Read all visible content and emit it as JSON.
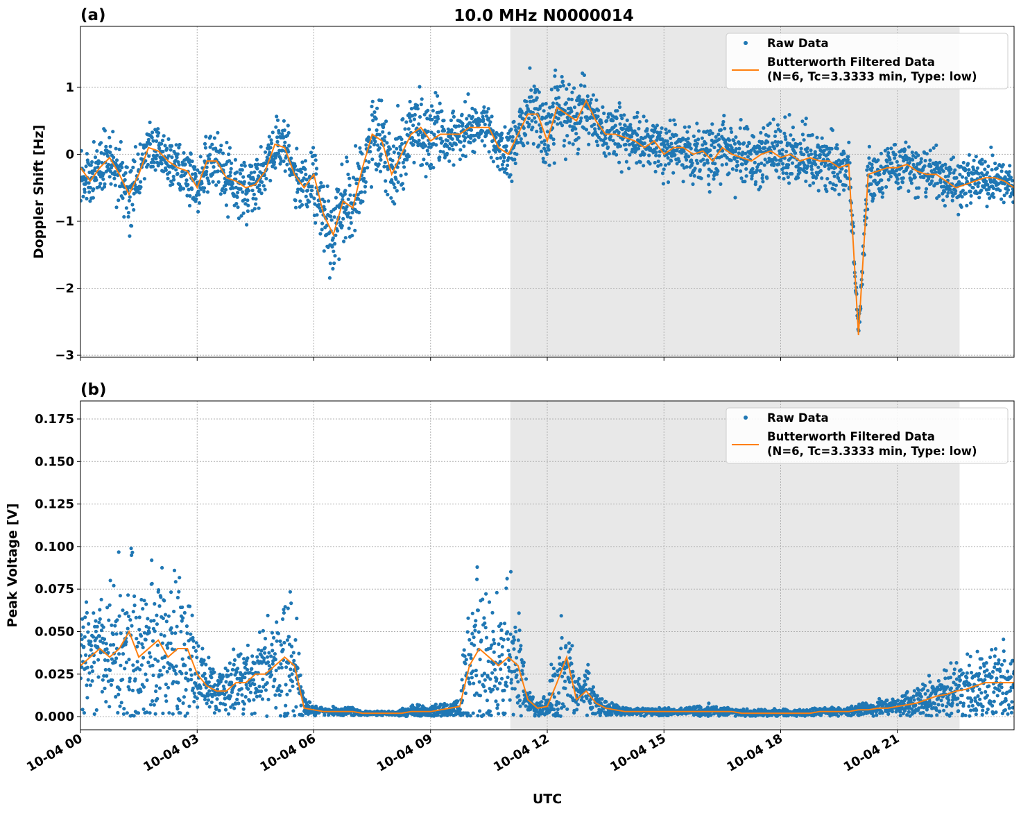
{
  "title": "10.0 MHz N0000014",
  "colors": {
    "raw": "#1f77b4",
    "filtered": "#ff7f0e",
    "shade": "#e8e8e8"
  },
  "chart_data": [
    {
      "type": "scatter+line",
      "panel_label": "(a)",
      "ylabel": "Doppler Shift [Hz]",
      "xlabel": "",
      "xlim_hours": [
        0,
        24
      ],
      "ylim": [
        -3.03,
        1.91
      ],
      "yticks": [
        1,
        0,
        -1,
        -2,
        -3
      ],
      "ytick_labels": [
        "1",
        "0",
        "−1",
        "−2",
        "−3"
      ],
      "grid": true,
      "shaded_region_hours": [
        11.05,
        22.6
      ],
      "legend": {
        "placement": "top-right",
        "entries": [
          "Raw Data",
          "Butterworth Filtered Data",
          "(N=6, Tc=3.3333 min, Type: low)"
        ]
      },
      "x_step_hours": 0.25,
      "filtered": [
        -0.2,
        -0.4,
        -0.2,
        -0.05,
        -0.3,
        -0.6,
        -0.3,
        0.1,
        0.05,
        -0.1,
        -0.2,
        -0.25,
        -0.5,
        -0.1,
        -0.1,
        -0.35,
        -0.4,
        -0.5,
        -0.45,
        -0.25,
        0.15,
        0.1,
        -0.3,
        -0.5,
        -0.3,
        -0.9,
        -1.2,
        -0.7,
        -0.8,
        -0.2,
        0.3,
        0.2,
        -0.3,
        0.0,
        0.3,
        0.4,
        0.2,
        0.3,
        0.3,
        0.3,
        0.4,
        0.4,
        0.4,
        0.1,
        0.0,
        0.3,
        0.6,
        0.6,
        0.2,
        0.7,
        0.6,
        0.5,
        0.8,
        0.5,
        0.3,
        0.3,
        0.25,
        0.2,
        0.1,
        0.2,
        0.0,
        0.1,
        0.1,
        0.0,
        0.05,
        -0.1,
        0.1,
        0.0,
        -0.05,
        -0.1,
        0.0,
        0.05,
        -0.05,
        0.0,
        -0.1,
        -0.05,
        -0.1,
        -0.1,
        -0.2,
        -0.15,
        -2.7,
        -0.3,
        -0.25,
        -0.2,
        -0.2,
        -0.15,
        -0.25,
        -0.3,
        -0.3,
        -0.4,
        -0.5,
        -0.45,
        -0.4,
        -0.35,
        -0.35,
        -0.4,
        -0.5
      ],
      "raw_spread": [
        0.3,
        0.3,
        0.35,
        0.35,
        0.4,
        0.45,
        0.35,
        0.3,
        0.3,
        0.3,
        0.3,
        0.3,
        0.35,
        0.35,
        0.35,
        0.4,
        0.4,
        0.4,
        0.35,
        0.3,
        0.3,
        0.35,
        0.4,
        0.4,
        0.45,
        0.45,
        0.5,
        0.5,
        0.5,
        0.5,
        0.55,
        0.55,
        0.55,
        0.55,
        0.5,
        0.5,
        0.45,
        0.45,
        0.4,
        0.35,
        0.35,
        0.35,
        0.35,
        0.35,
        0.35,
        0.45,
        0.5,
        0.5,
        0.45,
        0.45,
        0.45,
        0.4,
        0.4,
        0.35,
        0.35,
        0.35,
        0.35,
        0.35,
        0.35,
        0.35,
        0.35,
        0.35,
        0.35,
        0.35,
        0.35,
        0.4,
        0.4,
        0.4,
        0.4,
        0.4,
        0.4,
        0.4,
        0.4,
        0.4,
        0.4,
        0.4,
        0.4,
        0.35,
        0.35,
        0.35,
        0.1,
        0.35,
        0.3,
        0.3,
        0.3,
        0.3,
        0.3,
        0.3,
        0.3,
        0.3,
        0.3,
        0.3,
        0.3,
        0.3,
        0.3,
        0.3,
        0.3
      ]
    },
    {
      "type": "scatter+line",
      "panel_label": "(b)",
      "ylabel": "Peak Voltage [V]",
      "xlabel": "UTC",
      "xlim_hours": [
        0,
        24
      ],
      "ylim": [
        -0.0077,
        0.1856
      ],
      "yticks": [
        0.175,
        0.15,
        0.125,
        0.1,
        0.075,
        0.05,
        0.025,
        0.0
      ],
      "ytick_labels": [
        "0.175",
        "0.150",
        "0.125",
        "0.100",
        "0.075",
        "0.050",
        "0.025",
        "0.000"
      ],
      "xticks_hours": [
        0,
        3,
        6,
        9,
        12,
        15,
        18,
        21
      ],
      "xtick_labels": [
        "10-04 00",
        "10-04 03",
        "10-04 06",
        "10-04 09",
        "10-04 12",
        "10-04 15",
        "10-04 18",
        "10-04 21"
      ],
      "grid": true,
      "shaded_region_hours": [
        11.05,
        22.6
      ],
      "legend": {
        "placement": "top-right",
        "entries": [
          "Raw Data",
          "Butterworth Filtered Data",
          "(N=6, Tc=3.3333 min, Type: low)"
        ]
      },
      "x_step_hours": 0.25,
      "filtered": [
        0.03,
        0.035,
        0.04,
        0.035,
        0.04,
        0.05,
        0.035,
        0.04,
        0.045,
        0.035,
        0.04,
        0.04,
        0.025,
        0.018,
        0.015,
        0.015,
        0.02,
        0.02,
        0.025,
        0.025,
        0.03,
        0.035,
        0.03,
        0.005,
        0.004,
        0.003,
        0.003,
        0.003,
        0.003,
        0.002,
        0.002,
        0.002,
        0.002,
        0.002,
        0.003,
        0.003,
        0.003,
        0.004,
        0.005,
        0.006,
        0.03,
        0.04,
        0.035,
        0.03,
        0.035,
        0.03,
        0.01,
        0.005,
        0.006,
        0.02,
        0.035,
        0.01,
        0.015,
        0.008,
        0.005,
        0.004,
        0.003,
        0.003,
        0.003,
        0.003,
        0.003,
        0.003,
        0.003,
        0.003,
        0.003,
        0.003,
        0.003,
        0.003,
        0.002,
        0.002,
        0.002,
        0.002,
        0.002,
        0.002,
        0.002,
        0.002,
        0.003,
        0.003,
        0.003,
        0.003,
        0.004,
        0.004,
        0.005,
        0.005,
        0.006,
        0.007,
        0.008,
        0.01,
        0.012,
        0.013,
        0.015,
        0.016,
        0.018,
        0.02,
        0.02,
        0.02,
        0.02
      ],
      "raw_spread": [
        0.025,
        0.03,
        0.035,
        0.03,
        0.04,
        0.05,
        0.035,
        0.04,
        0.045,
        0.035,
        0.04,
        0.035,
        0.02,
        0.012,
        0.01,
        0.012,
        0.015,
        0.018,
        0.02,
        0.025,
        0.03,
        0.04,
        0.03,
        0.006,
        0.003,
        0.002,
        0.002,
        0.002,
        0.002,
        0.001,
        0.001,
        0.001,
        0.001,
        0.002,
        0.003,
        0.003,
        0.003,
        0.004,
        0.004,
        0.005,
        0.045,
        0.05,
        0.04,
        0.035,
        0.04,
        0.03,
        0.01,
        0.005,
        0.006,
        0.03,
        0.025,
        0.01,
        0.015,
        0.008,
        0.004,
        0.003,
        0.002,
        0.002,
        0.002,
        0.002,
        0.002,
        0.002,
        0.002,
        0.003,
        0.003,
        0.003,
        0.003,
        0.002,
        0.002,
        0.002,
        0.002,
        0.002,
        0.002,
        0.002,
        0.002,
        0.002,
        0.002,
        0.002,
        0.002,
        0.002,
        0.003,
        0.003,
        0.004,
        0.004,
        0.005,
        0.006,
        0.008,
        0.009,
        0.01,
        0.012,
        0.013,
        0.014,
        0.016,
        0.018,
        0.018,
        0.018,
        0.018
      ]
    }
  ]
}
